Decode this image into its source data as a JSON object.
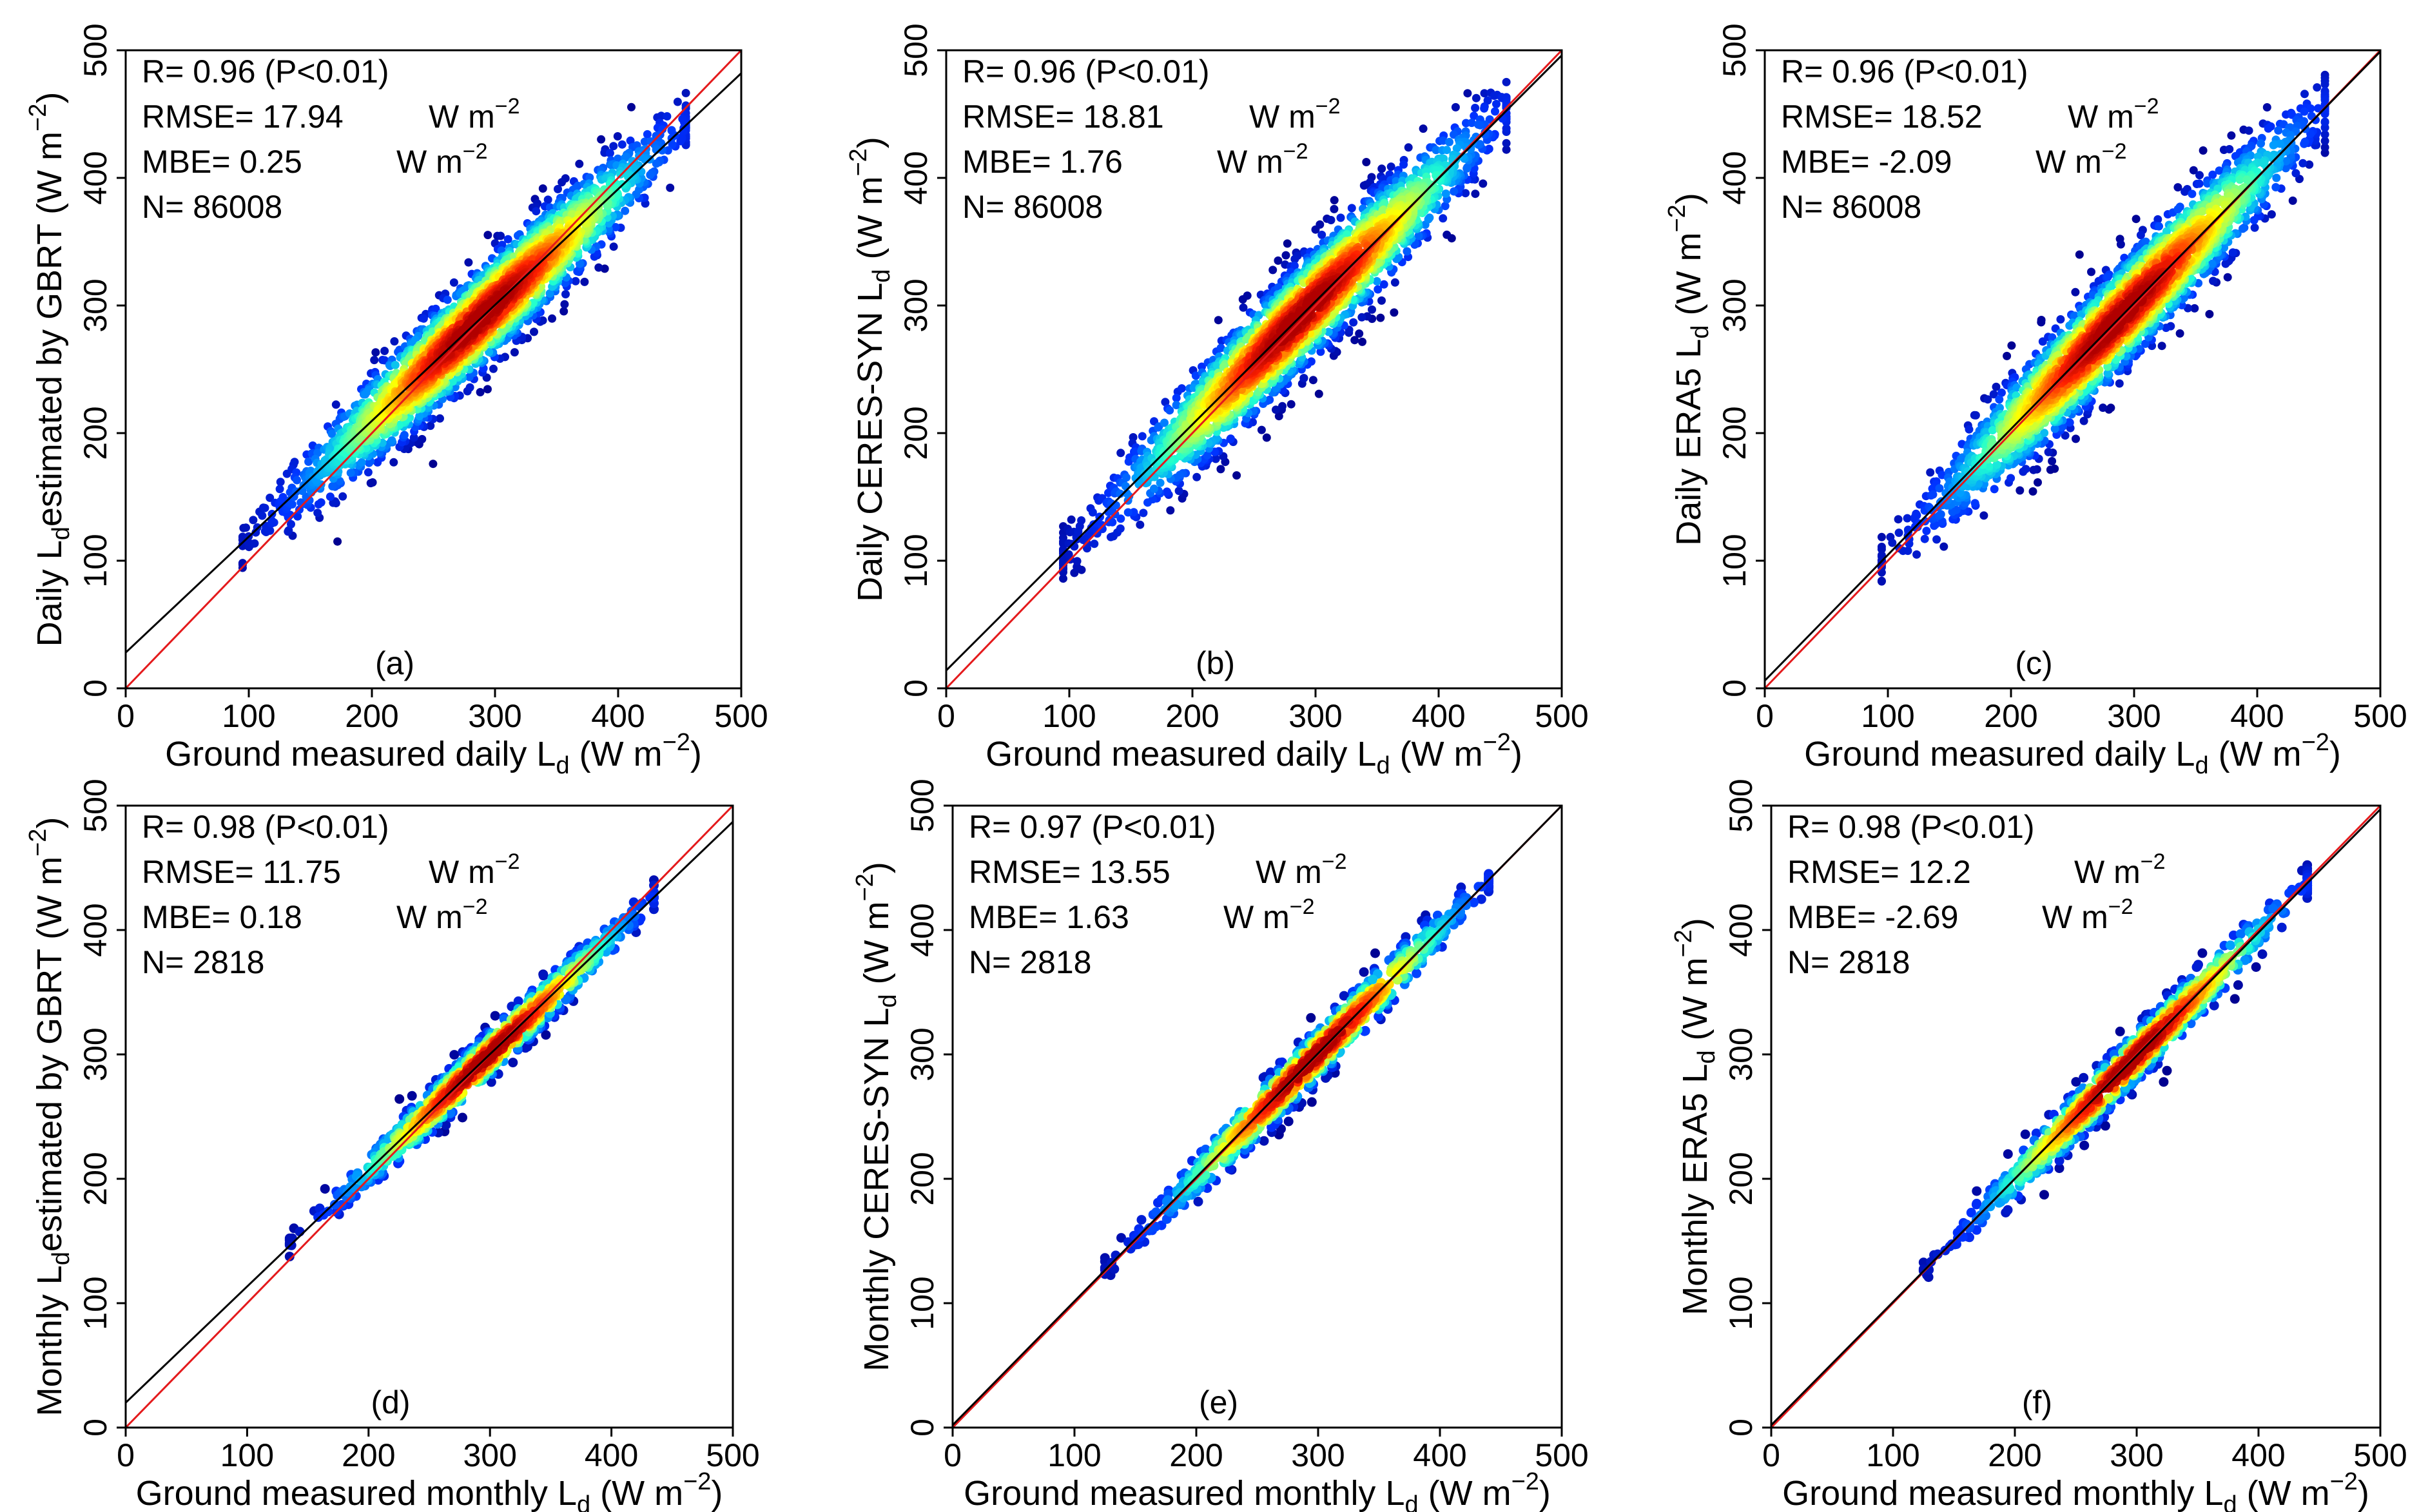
{
  "chart_data": [
    {
      "type": "scatter",
      "panel": "(a)",
      "ylabel_pre": "Daily L",
      "ylabel_sub": "d",
      "ylabel_post": "estimated by GBRT (W m",
      "ylabel_sup": "−2",
      "ylabel_end": ")",
      "xlabel_pre": "Ground measured daily L",
      "xlabel_sub": "d",
      "xlabel_post": " (W m",
      "xlabel_sup": "−2",
      "xlabel_end": ")",
      "xlim": [
        0,
        500
      ],
      "ylim": [
        0,
        500
      ],
      "xticks": [
        "0",
        "100",
        "200",
        "300",
        "400",
        "500"
      ],
      "yticks": [
        "0",
        "100",
        "200",
        "300",
        "400",
        "500"
      ],
      "stats": [
        "R= 0.96 (P<0.01)",
        "RMSE= 17.94",
        "MBE= 0.25",
        "N= 86008"
      ],
      "unit": "W m",
      "unit_sup": "−2",
      "one_to_one": {
        "x": [
          0,
          500
        ],
        "y": [
          0,
          500
        ]
      },
      "fit_line": {
        "x": [
          0,
          500
        ],
        "y": [
          28,
          482
        ]
      },
      "cloud": {
        "x_range": [
          100,
          455
        ],
        "min_x": 95,
        "spread": 38,
        "density": "high"
      }
    },
    {
      "type": "scatter",
      "panel": "(b)",
      "ylabel_pre": "Daily CERES-SYN L",
      "ylabel_sub": "d",
      "ylabel_post": " (W m",
      "ylabel_sup": "−2",
      "ylabel_end": ")",
      "xlabel_pre": "Ground measured daily L",
      "xlabel_sub": "d",
      "xlabel_post": " (W m",
      "xlabel_sup": "−2",
      "xlabel_end": ")",
      "xlim": [
        0,
        500
      ],
      "ylim": [
        0,
        500
      ],
      "xticks": [
        "0",
        "100",
        "200",
        "300",
        "400",
        "500"
      ],
      "yticks": [
        "0",
        "100",
        "200",
        "300",
        "400",
        "500"
      ],
      "stats": [
        "R= 0.96 (P<0.01)",
        "RMSE= 18.81",
        "MBE= 1.76",
        "N= 86008"
      ],
      "unit": "W m",
      "unit_sup": "−2",
      "one_to_one": {
        "x": [
          0,
          500
        ],
        "y": [
          0,
          500
        ]
      },
      "fit_line": {
        "x": [
          0,
          500
        ],
        "y": [
          14,
          496
        ]
      },
      "cloud": {
        "x_range": [
          100,
          455
        ],
        "min_x": 95,
        "spread": 40,
        "density": "high"
      }
    },
    {
      "type": "scatter",
      "panel": "(c)",
      "ylabel_pre": "Daily ERA5 L",
      "ylabel_sub": "d",
      "ylabel_post": " (W m",
      "ylabel_sup": "−2",
      "ylabel_end": ")",
      "xlabel_pre": "Ground measured daily L",
      "xlabel_sub": "d",
      "xlabel_post": " (W m",
      "xlabel_sup": "−2",
      "xlabel_end": ")",
      "xlim": [
        0,
        500
      ],
      "ylim": [
        0,
        500
      ],
      "xticks": [
        "0",
        "100",
        "200",
        "300",
        "400",
        "500"
      ],
      "yticks": [
        "0",
        "100",
        "200",
        "300",
        "400",
        "500"
      ],
      "stats": [
        "R= 0.96 (P<0.01)",
        "RMSE= 18.52",
        "MBE= -2.09",
        "N= 86008"
      ],
      "unit": "W m",
      "unit_sup": "−2",
      "one_to_one": {
        "x": [
          0,
          500
        ],
        "y": [
          0,
          500
        ]
      },
      "fit_line": {
        "x": [
          0,
          500
        ],
        "y": [
          6,
          499
        ]
      },
      "cloud": {
        "x_range": [
          100,
          455
        ],
        "min_x": 95,
        "spread": 40,
        "density": "high"
      }
    },
    {
      "type": "scatter",
      "panel": "(d)",
      "ylabel_pre": "Monthly L",
      "ylabel_sub": "d",
      "ylabel_post": "estimated by GBRT (W m",
      "ylabel_sup": "−2",
      "ylabel_end": ")",
      "xlabel_pre": "Ground measured monthly L",
      "xlabel_sub": "d",
      "xlabel_post": " (W m",
      "xlabel_sup": "−2",
      "xlabel_end": ")",
      "xlim": [
        0,
        500
      ],
      "ylim": [
        0,
        500
      ],
      "xticks": [
        "0",
        "100",
        "200",
        "300",
        "400",
        "500"
      ],
      "yticks": [
        "0",
        "100",
        "200",
        "300",
        "400",
        "500"
      ],
      "stats": [
        "R= 0.98 (P<0.01)",
        "RMSE= 11.75",
        "MBE= 0.18",
        "N= 2818"
      ],
      "unit": "W m",
      "unit_sup": "−2",
      "one_to_one": {
        "x": [
          0,
          500
        ],
        "y": [
          0,
          500
        ]
      },
      "fit_line": {
        "x": [
          0,
          500
        ],
        "y": [
          20,
          487
        ]
      },
      "cloud": {
        "x_range": [
          140,
          435
        ],
        "min_x": 135,
        "spread": 18,
        "density": "low"
      }
    },
    {
      "type": "scatter",
      "panel": "(e)",
      "ylabel_pre": "Monthly CERES-SYN L",
      "ylabel_sub": "d",
      "ylabel_post": " (W m",
      "ylabel_sup": "−2",
      "ylabel_end": ")",
      "xlabel_pre": "Ground measured monthly L",
      "xlabel_sub": "d",
      "xlabel_post": " (W m",
      "xlabel_sup": "−2",
      "xlabel_end": ")",
      "xlim": [
        0,
        500
      ],
      "ylim": [
        0,
        500
      ],
      "xticks": [
        "0",
        "100",
        "200",
        "300",
        "400",
        "500"
      ],
      "yticks": [
        "0",
        "100",
        "200",
        "300",
        "400",
        "500"
      ],
      "stats": [
        "R= 0.97 (P<0.01)",
        "RMSE= 13.55",
        "MBE= 1.63",
        "N= 2818"
      ],
      "unit": "W m",
      "unit_sup": "−2",
      "one_to_one": {
        "x": [
          0,
          500
        ],
        "y": [
          0,
          500
        ]
      },
      "fit_line": {
        "x": [
          0,
          500
        ],
        "y": [
          2,
          500
        ]
      },
      "cloud": {
        "x_range": [
          130,
          440
        ],
        "min_x": 125,
        "spread": 20,
        "density": "low"
      }
    },
    {
      "type": "scatter",
      "panel": "(f)",
      "ylabel_pre": "Monthly ERA5 L",
      "ylabel_sub": "d",
      "ylabel_post": " (W m",
      "ylabel_sup": "−2",
      "ylabel_end": ")",
      "xlabel_pre": "Ground measured monthly L",
      "xlabel_sub": "d",
      "xlabel_post": " (W m",
      "xlabel_sup": "−2",
      "xlabel_end": ")",
      "xlim": [
        0,
        500
      ],
      "ylim": [
        0,
        500
      ],
      "xticks": [
        "0",
        "100",
        "200",
        "300",
        "400",
        "500"
      ],
      "yticks": [
        "0",
        "100",
        "200",
        "300",
        "400",
        "500"
      ],
      "stats": [
        "R= 0.98 (P<0.01)",
        "RMSE= 12.2",
        "MBE= -2.69",
        "N= 2818"
      ],
      "unit": "W m",
      "unit_sup": "−2",
      "one_to_one": {
        "x": [
          0,
          500
        ],
        "y": [
          0,
          500
        ]
      },
      "fit_line": {
        "x": [
          0,
          500
        ],
        "y": [
          2,
          497
        ]
      },
      "cloud": {
        "x_range": [
          130,
          440
        ],
        "min_x": 125,
        "spread": 20,
        "density": "low"
      }
    }
  ],
  "colors": {
    "one_to_one": "#e41a1c",
    "fit_line": "#000000",
    "colormap": [
      "#00008f",
      "#0030ff",
      "#00a0ff",
      "#20ffd0",
      "#a0ff60",
      "#ffff00",
      "#ff9000",
      "#ff2000",
      "#b00000"
    ]
  }
}
